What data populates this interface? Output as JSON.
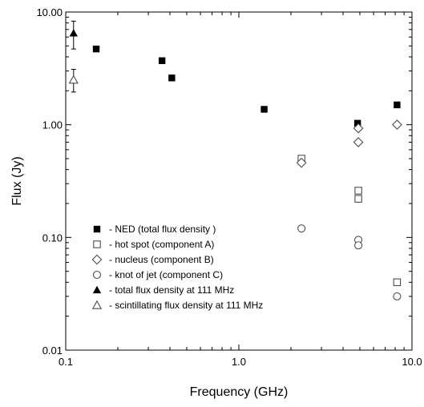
{
  "chart_data": {
    "type": "scatter",
    "xscale": "log",
    "yscale": "log",
    "xlim": [
      0.1,
      10.0
    ],
    "ylim": [
      0.01,
      10.0
    ],
    "xlabel": "Frequency (GHz)",
    "ylabel": "Flux (Jy)",
    "xticks": [
      "0.1",
      "1.0",
      "10.0"
    ],
    "yticks": [
      "0.01",
      "0.10",
      "1.00",
      "10.00"
    ],
    "legend_position": "bottom-left",
    "series": [
      {
        "name": "- NED (total flux density )",
        "marker": "filled-square",
        "points": [
          {
            "x": 0.15,
            "y": 4.7
          },
          {
            "x": 0.36,
            "y": 3.7
          },
          {
            "x": 0.41,
            "y": 2.6
          },
          {
            "x": 1.4,
            "y": 1.37
          },
          {
            "x": 4.85,
            "y": 1.03
          },
          {
            "x": 8.2,
            "y": 1.5
          }
        ]
      },
      {
        "name": "- hot spot (component A)",
        "marker": "open-square",
        "points": [
          {
            "x": 2.3,
            "y": 0.5
          },
          {
            "x": 4.9,
            "y": 0.26
          },
          {
            "x": 4.9,
            "y": 0.22
          },
          {
            "x": 8.2,
            "y": 0.04
          }
        ]
      },
      {
        "name": "- nucleus (component B)",
        "marker": "open-diamond",
        "points": [
          {
            "x": 2.3,
            "y": 0.46
          },
          {
            "x": 4.9,
            "y": 0.93
          },
          {
            "x": 4.9,
            "y": 0.7
          },
          {
            "x": 8.2,
            "y": 1.0
          }
        ]
      },
      {
        "name": "- knot of jet (component C)",
        "marker": "open-circle",
        "points": [
          {
            "x": 2.3,
            "y": 0.12
          },
          {
            "x": 4.9,
            "y": 0.095
          },
          {
            "x": 4.9,
            "y": 0.085
          },
          {
            "x": 8.2,
            "y": 0.03
          }
        ]
      },
      {
        "name": "- total  flux density at 111 MHz",
        "marker": "filled-triangle",
        "points": [
          {
            "x": 0.111,
            "y": 6.5,
            "y_err_low": 4.7,
            "y_err_high": 8.3
          }
        ]
      },
      {
        "name": "- scintillating  flux density  at 111 MHz",
        "marker": "open-triangle",
        "points": [
          {
            "x": 0.111,
            "y": 2.5,
            "y_err_low": 1.95,
            "y_err_high": 3.1
          }
        ]
      }
    ]
  }
}
